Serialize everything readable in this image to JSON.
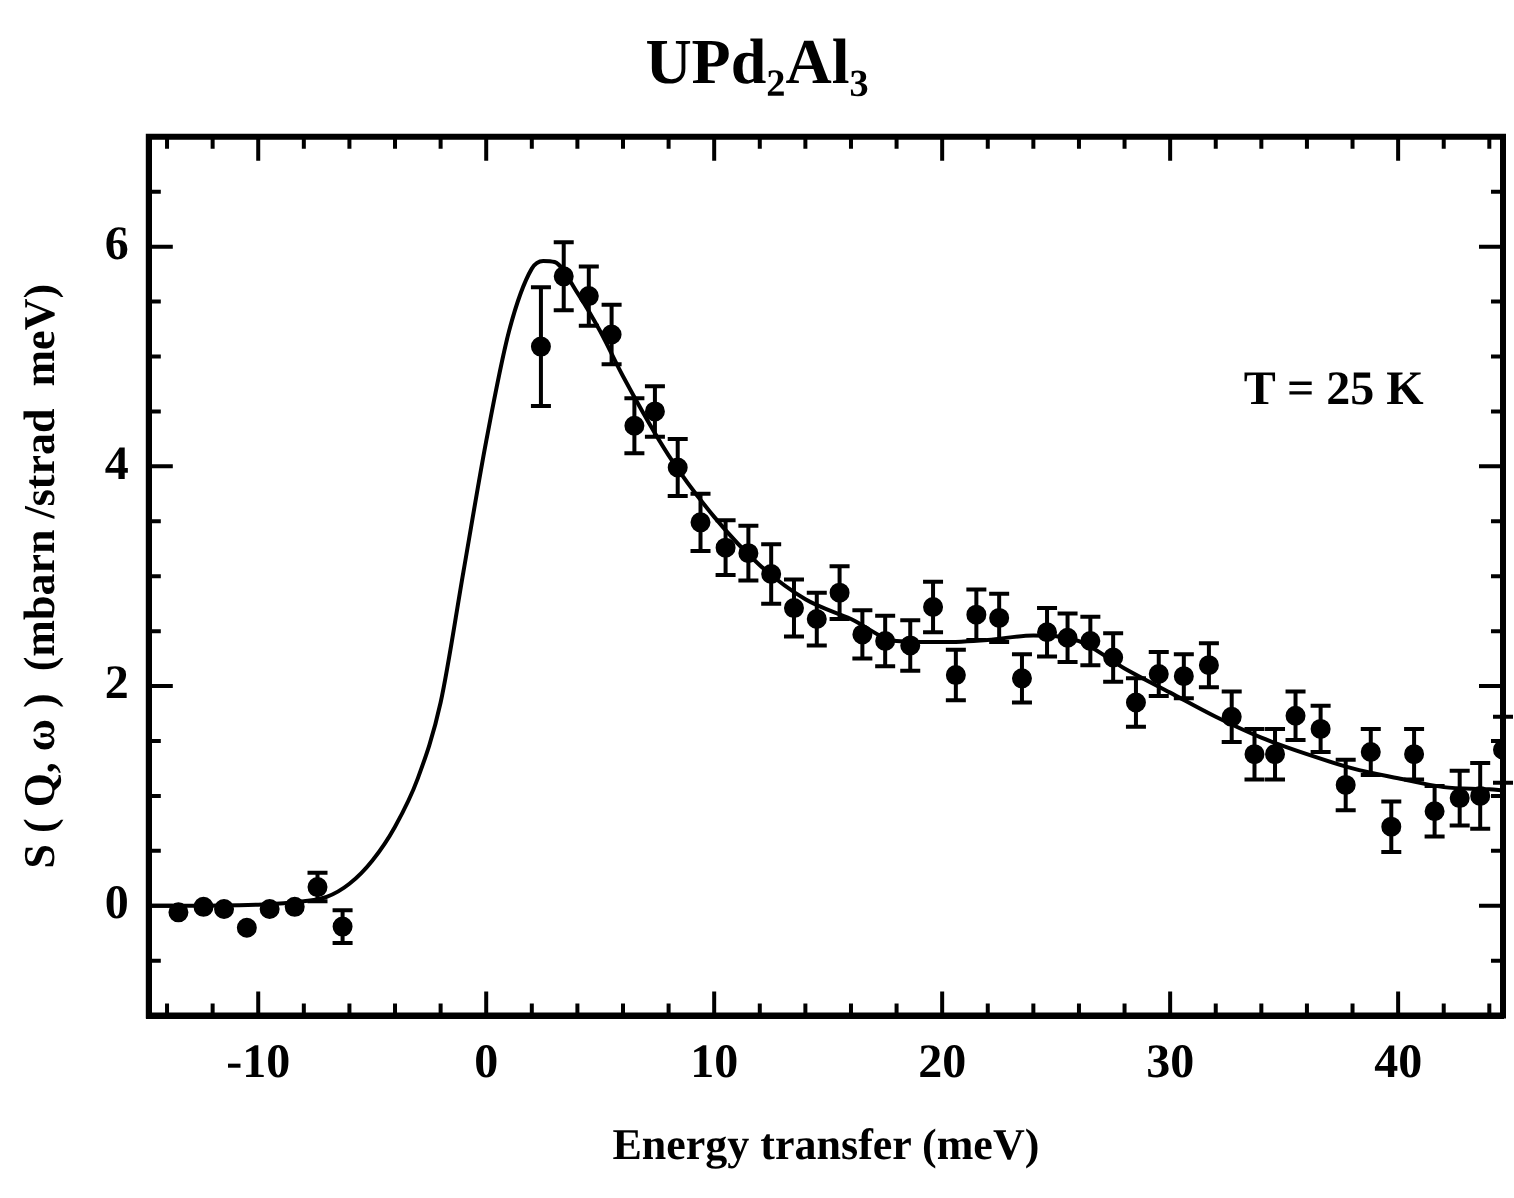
{
  "chart_data": {
    "type": "scatter",
    "title": "UPd₂Al₃",
    "xlabel": "Energy transfer (meV)",
    "ylabel": "S ( Q, ω )  (mbarn /strad  meV)",
    "annotations": [
      "T = 25 K"
    ],
    "xlim": [
      -14.8,
      44.6
    ],
    "ylim": [
      -1,
      7
    ],
    "xticks": [
      {
        "value": -14,
        "label": null
      },
      {
        "value": -12,
        "label": null
      },
      -10,
      {
        "value": -8,
        "label": null
      },
      {
        "value": -6,
        "label": null
      },
      {
        "value": -4,
        "label": null
      },
      {
        "value": -2,
        "label": null
      },
      0,
      {
        "value": 2,
        "label": null
      },
      {
        "value": 4,
        "label": null
      },
      {
        "value": 6,
        "label": null
      },
      {
        "value": 8,
        "label": null
      },
      10,
      {
        "value": 12,
        "label": null
      },
      {
        "value": 14,
        "label": null
      },
      {
        "value": 16,
        "label": null
      },
      {
        "value": 18,
        "label": null
      },
      20,
      {
        "value": 22,
        "label": null
      },
      {
        "value": 24,
        "label": null
      },
      {
        "value": 26,
        "label": null
      },
      {
        "value": 28,
        "label": null
      },
      30,
      {
        "value": 32,
        "label": null
      },
      {
        "value": 34,
        "label": null
      },
      {
        "value": 36,
        "label": null
      },
      {
        "value": 38,
        "label": null
      },
      40,
      {
        "value": 42,
        "label": null
      },
      {
        "value": 44,
        "label": null
      }
    ],
    "yticks": [
      {
        "value": -0.5,
        "label": null
      },
      0,
      {
        "value": 0.5,
        "label": null
      },
      {
        "value": 1,
        "label": null
      },
      {
        "value": 1.5,
        "label": null
      },
      2,
      {
        "value": 2.5,
        "label": null
      },
      {
        "value": 3,
        "label": null
      },
      {
        "value": 3.5,
        "label": null
      },
      4,
      {
        "value": 4.5,
        "label": null
      },
      {
        "value": 5,
        "label": null
      },
      {
        "value": 5.5,
        "label": null
      },
      6,
      {
        "value": 6.5,
        "label": null
      }
    ],
    "grid": false,
    "legend": false,
    "series": [
      {
        "color": "#000000",
        "marker": "circle",
        "x": [
          -13.5,
          -12.4,
          -11.5,
          -10.5,
          -9.5,
          -8.4,
          -7.4,
          -6.3,
          2.4,
          3.4,
          4.5,
          5.5,
          6.5,
          7.4,
          8.4,
          9.4,
          10.5,
          11.5,
          12.5,
          13.5,
          14.5,
          15.5,
          16.5,
          17.5,
          18.6,
          19.6,
          20.6,
          21.5,
          22.5,
          23.5,
          24.6,
          25.5,
          26.5,
          27.5,
          28.5,
          29.5,
          30.6,
          31.7,
          32.7,
          33.7,
          34.6,
          35.5,
          36.6,
          37.7,
          38.8,
          39.7,
          40.7,
          41.6,
          42.7,
          43.6,
          44.6
        ],
        "values": [
          -0.06,
          -0.01,
          -0.03,
          -0.2,
          -0.03,
          -0.01,
          0.17,
          -0.19,
          5.09,
          5.73,
          5.55,
          5.2,
          4.37,
          4.5,
          3.99,
          3.49,
          3.26,
          3.21,
          3.02,
          2.71,
          2.61,
          2.85,
          2.47,
          2.41,
          2.37,
          2.72,
          2.1,
          2.65,
          2.62,
          2.07,
          2.49,
          2.44,
          2.41,
          2.26,
          1.85,
          2.11,
          2.09,
          2.19,
          1.72,
          1.38,
          1.38,
          1.73,
          1.61,
          1.1,
          1.4,
          0.72,
          1.38,
          0.86,
          0.98,
          1.0,
          1.42
        ],
        "errors": [
          null,
          null,
          null,
          null,
          null,
          null,
          0.13,
          0.15,
          0.54,
          0.31,
          0.27,
          0.27,
          0.25,
          0.23,
          0.26,
          0.26,
          0.25,
          0.25,
          0.27,
          0.26,
          0.24,
          0.24,
          0.22,
          0.23,
          0.23,
          0.23,
          0.23,
          0.23,
          0.22,
          0.22,
          0.22,
          0.22,
          0.22,
          0.22,
          0.22,
          0.2,
          0.2,
          0.2,
          0.23,
          0.23,
          0.23,
          0.22,
          0.21,
          0.23,
          0.21,
          0.23,
          0.23,
          0.23,
          0.25,
          0.3,
          0.3
        ]
      },
      {
        "type": "line",
        "color": "#000000",
        "line_style": "solid",
        "marker": "none",
        "x": [
          -14.8,
          -14,
          -10,
          -8,
          -7,
          -6,
          -5,
          -4,
          -3,
          -2,
          -1,
          0,
          1,
          2,
          2.5,
          3,
          4,
          5,
          6,
          8,
          10,
          12,
          14,
          16,
          18,
          20,
          22,
          24,
          26,
          28,
          30,
          32,
          34,
          36,
          38,
          40,
          42,
          44,
          44.6
        ],
        "values": [
          0,
          0,
          0.01,
          0.04,
          0.08,
          0.2,
          0.41,
          0.72,
          1.16,
          1.85,
          3.04,
          4.23,
          5.23,
          5.8,
          5.87,
          5.86,
          5.58,
          5.23,
          4.82,
          4.1,
          3.54,
          3.1,
          2.79,
          2.61,
          2.41,
          2.4,
          2.42,
          2.46,
          2.41,
          2.16,
          1.94,
          1.72,
          1.53,
          1.38,
          1.25,
          1.16,
          1.08,
          1.06,
          1.05
        ]
      }
    ]
  }
}
